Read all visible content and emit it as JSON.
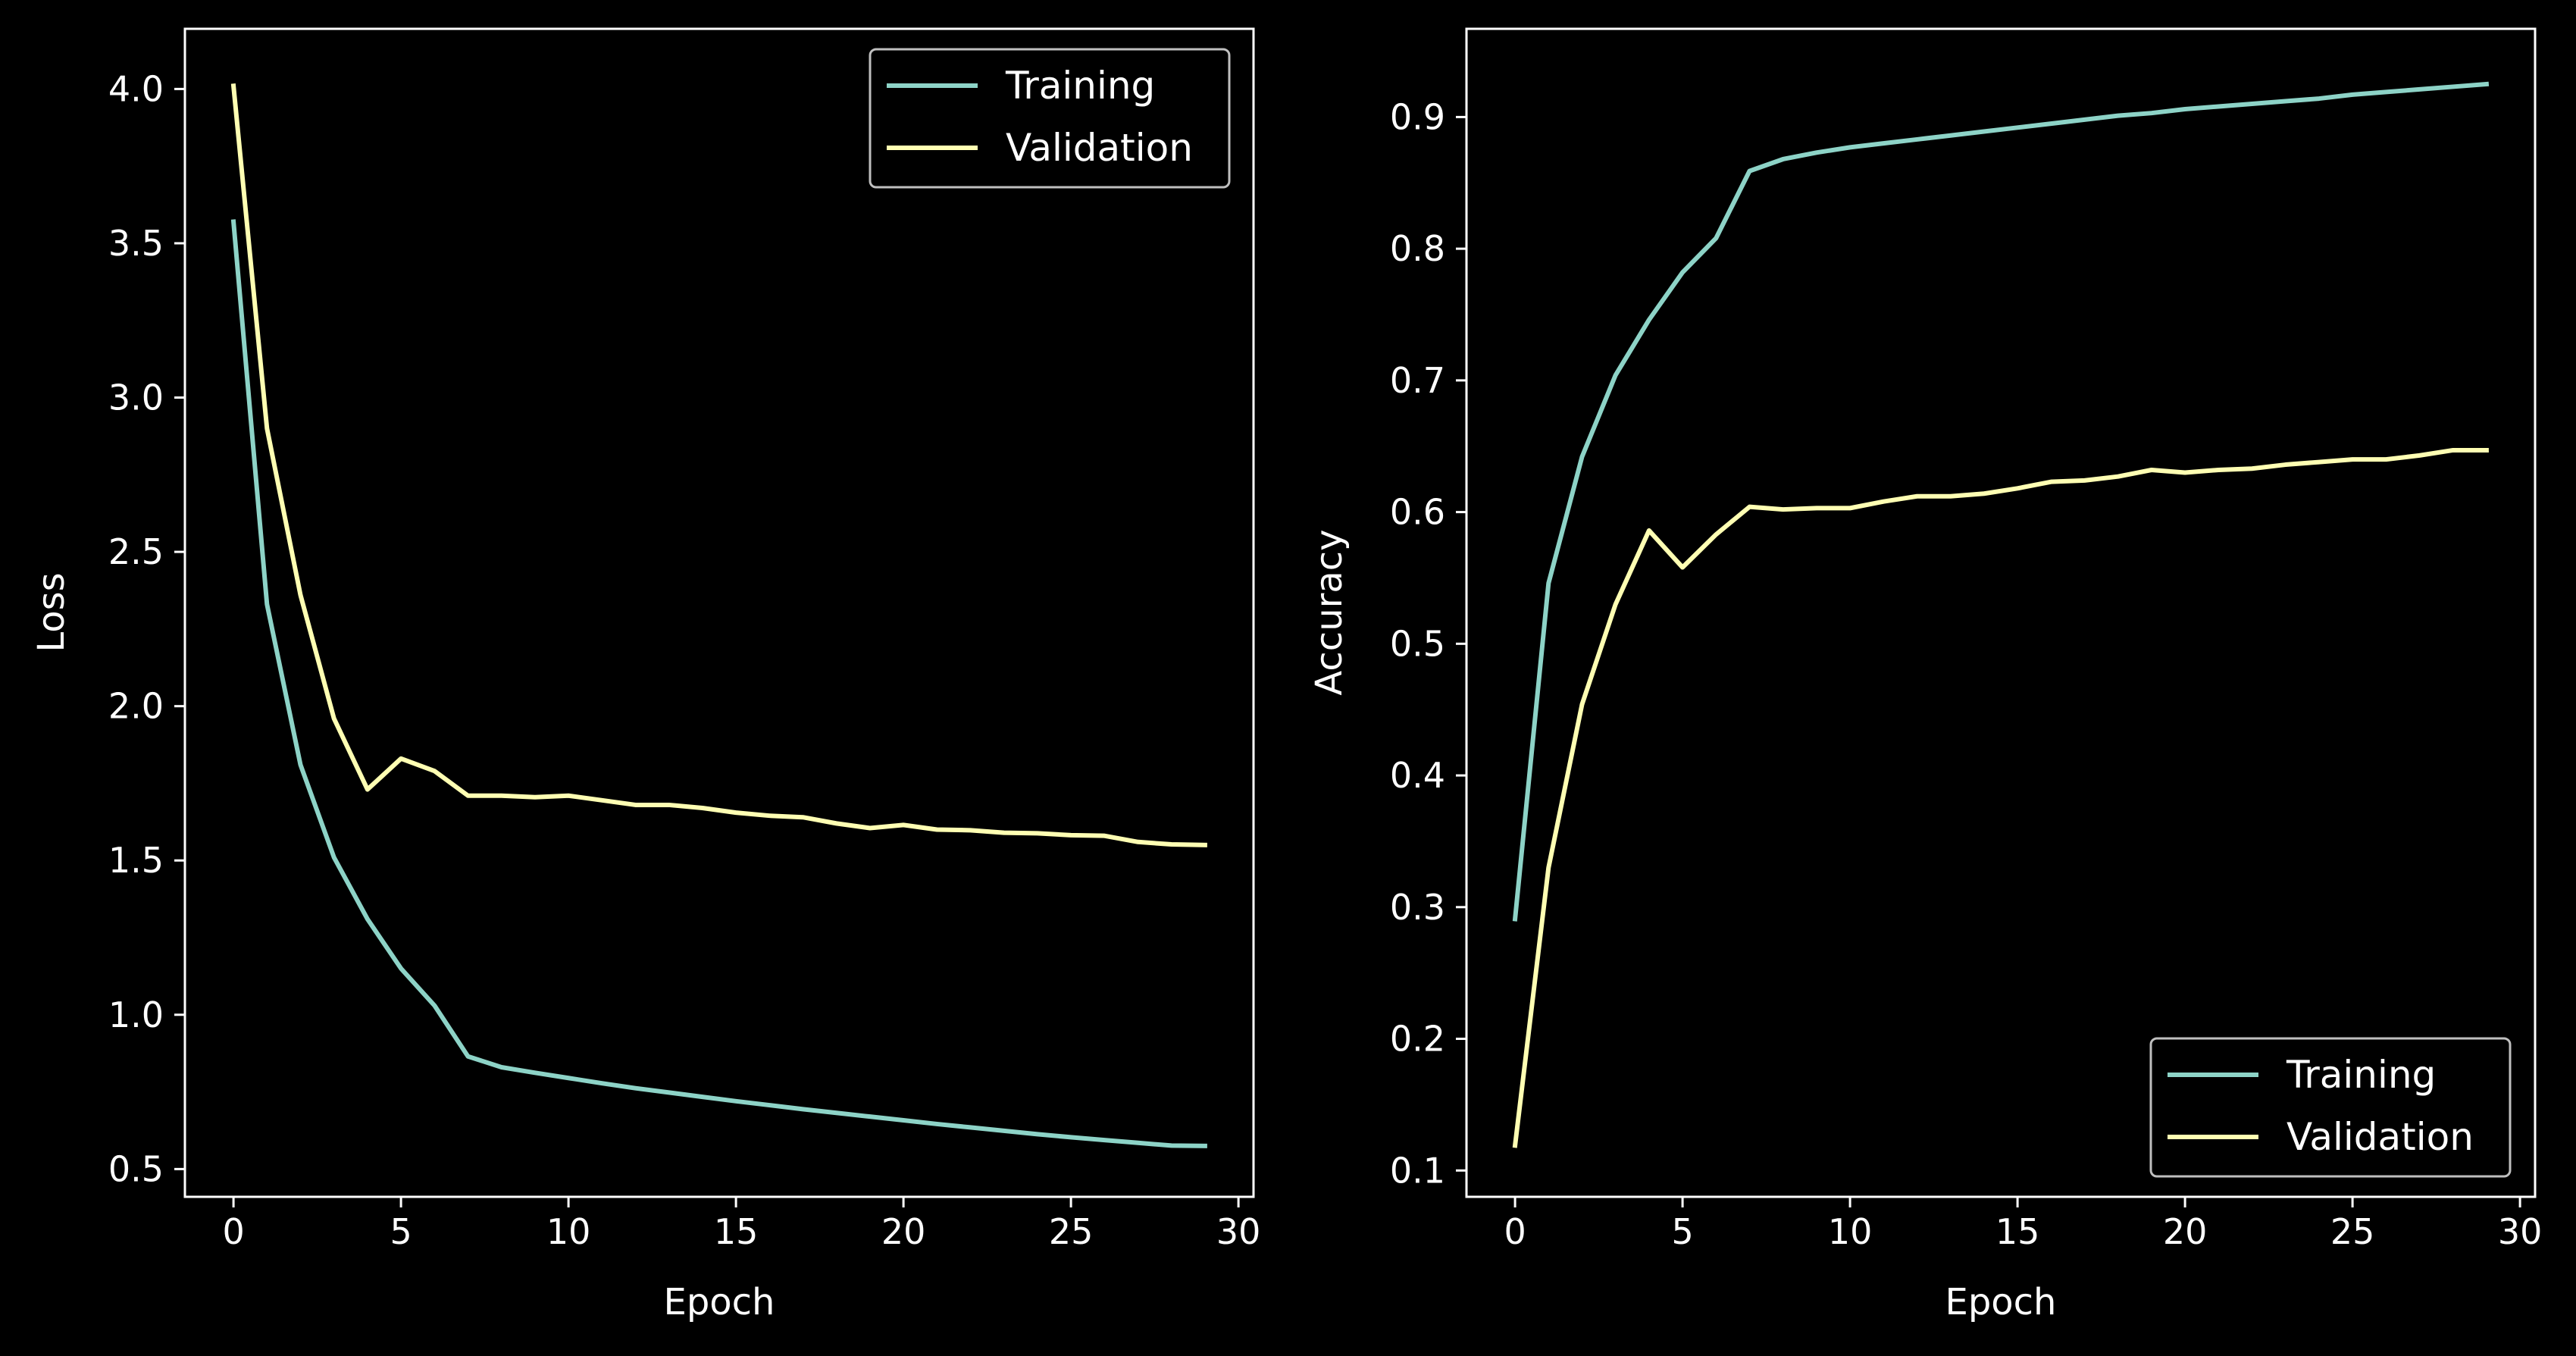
{
  "colors": {
    "background": "#000000",
    "axes": "#ffffff",
    "text": "#ffffff",
    "training": "#8dd3c7",
    "validation": "#ffffb3",
    "legend_border": "#bfbfbf"
  },
  "chart_data": [
    {
      "type": "line",
      "title": "",
      "xlabel": "Epoch",
      "ylabel": "Loss",
      "xlim": [
        -1.45,
        30.45
      ],
      "ylim": [
        0.41,
        4.195
      ],
      "xticks": [
        0,
        5,
        10,
        15,
        20,
        25,
        30
      ],
      "yticks": [
        0.5,
        1.0,
        1.5,
        2.0,
        2.5,
        3.0,
        3.5,
        4.0
      ],
      "ytick_labels": [
        "0.5",
        "1.0",
        "1.5",
        "2.0",
        "2.5",
        "3.0",
        "3.5",
        "4.0"
      ],
      "grid": false,
      "legend_position": "top-right",
      "x": [
        0,
        1,
        2,
        3,
        4,
        5,
        6,
        7,
        8,
        9,
        10,
        11,
        12,
        13,
        14,
        15,
        16,
        17,
        18,
        19,
        20,
        21,
        22,
        23,
        24,
        25,
        26,
        27,
        28,
        29
      ],
      "series": [
        {
          "name": "Training",
          "color": "#8dd3c7",
          "values": [
            3.57,
            2.33,
            1.81,
            1.51,
            1.31,
            1.15,
            1.03,
            0.865,
            0.83,
            0.812,
            0.795,
            0.778,
            0.762,
            0.748,
            0.734,
            0.72,
            0.707,
            0.694,
            0.682,
            0.67,
            0.658,
            0.646,
            0.635,
            0.624,
            0.613,
            0.603,
            0.594,
            0.585,
            0.576,
            0.575
          ]
        },
        {
          "name": "Validation",
          "color": "#ffffb3",
          "values": [
            4.01,
            2.9,
            2.36,
            1.96,
            1.73,
            1.83,
            1.79,
            1.71,
            1.71,
            1.705,
            1.71,
            1.695,
            1.68,
            1.68,
            1.67,
            1.655,
            1.645,
            1.64,
            1.62,
            1.605,
            1.615,
            1.6,
            1.598,
            1.59,
            1.588,
            1.582,
            1.58,
            1.56,
            1.552,
            1.55
          ]
        }
      ]
    },
    {
      "type": "line",
      "title": "",
      "xlabel": "Epoch",
      "ylabel": "Accuracy",
      "xlim": [
        -1.45,
        30.45
      ],
      "ylim": [
        0.08,
        0.967
      ],
      "xticks": [
        0,
        5,
        10,
        15,
        20,
        25,
        30
      ],
      "yticks": [
        0.1,
        0.2,
        0.3,
        0.4,
        0.5,
        0.6,
        0.7,
        0.8,
        0.9
      ],
      "ytick_labels": [
        "0.1",
        "0.2",
        "0.3",
        "0.4",
        "0.5",
        "0.6",
        "0.7",
        "0.8",
        "0.9"
      ],
      "grid": false,
      "legend_position": "bottom-right",
      "x": [
        0,
        1,
        2,
        3,
        4,
        5,
        6,
        7,
        8,
        9,
        10,
        11,
        12,
        13,
        14,
        15,
        16,
        17,
        18,
        19,
        20,
        21,
        22,
        23,
        24,
        25,
        26,
        27,
        28,
        29
      ],
      "series": [
        {
          "name": "Training",
          "color": "#8dd3c7",
          "values": [
            0.291,
            0.546,
            0.642,
            0.704,
            0.746,
            0.782,
            0.808,
            0.859,
            0.868,
            0.873,
            0.877,
            0.88,
            0.883,
            0.886,
            0.889,
            0.892,
            0.895,
            0.898,
            0.901,
            0.903,
            0.906,
            0.908,
            0.91,
            0.912,
            0.914,
            0.917,
            0.919,
            0.921,
            0.923,
            0.925
          ]
        },
        {
          "name": "Validation",
          "color": "#ffffb3",
          "values": [
            0.119,
            0.33,
            0.454,
            0.53,
            0.586,
            0.558,
            0.583,
            0.604,
            0.602,
            0.603,
            0.603,
            0.608,
            0.612,
            0.612,
            0.614,
            0.618,
            0.623,
            0.624,
            0.627,
            0.632,
            0.63,
            0.632,
            0.633,
            0.636,
            0.638,
            0.64,
            0.64,
            0.643,
            0.647,
            0.647
          ]
        }
      ]
    }
  ]
}
